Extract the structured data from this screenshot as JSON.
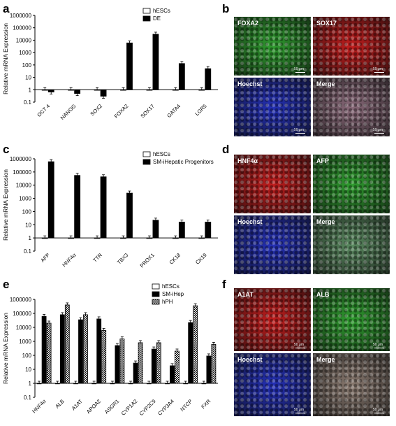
{
  "panels": {
    "a": "a",
    "b": "b",
    "c": "c",
    "d": "d",
    "e": "e",
    "f": "f"
  },
  "chart_data": [
    {
      "type": "bar",
      "panel": "a",
      "ylabel": "Relative mRNA Expression",
      "yscale": "log",
      "ylim": [
        0.1,
        1000000
      ],
      "yticks": [
        "0.1",
        "1",
        "10",
        "100",
        "1000",
        "10000",
        "100000",
        "1000000"
      ],
      "categories": [
        "OCT 4",
        "NANOG",
        "SOX2",
        "FOXA2",
        "SOX17",
        "GATA4",
        "LGR5"
      ],
      "series": [
        {
          "name": "hESCs",
          "fill": "white",
          "values": [
            1,
            1,
            1,
            1,
            1,
            1,
            1
          ]
        },
        {
          "name": "DE",
          "fill": "black",
          "values": [
            0.65,
            0.5,
            0.3,
            6000,
            30000,
            130,
            50
          ]
        }
      ],
      "legend": "top-right"
    },
    {
      "type": "bar",
      "panel": "c",
      "ylabel": "Relative mRNA Expression",
      "yscale": "log",
      "ylim": [
        0.1,
        1000000
      ],
      "yticks": [
        "0.1",
        "1",
        "10",
        "100",
        "1000",
        "10000",
        "100000",
        "1000000"
      ],
      "categories": [
        "AFP",
        "HNF4α",
        "TTR",
        "TBX3",
        "PROX1",
        "CK18",
        "CK19"
      ],
      "series": [
        {
          "name": "hESCs",
          "fill": "white",
          "values": [
            1,
            1,
            1,
            1,
            1,
            1,
            1
          ]
        },
        {
          "name": "SM-iHepatic Progenitors",
          "fill": "black",
          "values": [
            600000,
            55000,
            43000,
            2500,
            22,
            16,
            16
          ]
        }
      ],
      "legend": "top-right"
    },
    {
      "type": "bar",
      "panel": "e",
      "ylabel": "Relative mRNA Expression",
      "yscale": "log",
      "ylim": [
        0.1,
        1000000
      ],
      "yticks": [
        "0.1",
        "1",
        "10",
        "100",
        "1000",
        "10000",
        "100000",
        "1000000"
      ],
      "categories": [
        "HNF4α",
        "ALB",
        "A1AT",
        "APOA2",
        "ASGR1",
        "CYP1A2",
        "CYP2C9",
        "CYP3A4",
        "NTCP",
        "FXR"
      ],
      "series": [
        {
          "name": "hESCs",
          "fill": "white",
          "values": [
            1,
            1,
            1,
            1,
            1,
            1,
            1,
            1,
            1,
            1
          ]
        },
        {
          "name": "SM-iHep",
          "fill": "black",
          "values": [
            60000,
            80000,
            35000,
            40000,
            500,
            28,
            280,
            18,
            22000,
            90
          ]
        },
        {
          "name": "hPH",
          "fill": "checker",
          "values": [
            20000,
            400000,
            80000,
            6000,
            1500,
            800,
            800,
            200,
            350000,
            600
          ]
        }
      ],
      "legend": "top-right"
    }
  ],
  "images": {
    "b": [
      {
        "label": "FOXA2",
        "color": "#2f9d2f",
        "scale": "50 μm"
      },
      {
        "label": "SOX17",
        "color": "#c21d1d",
        "scale": "50 μm"
      },
      {
        "label": "Hoechst",
        "color": "#2430b8",
        "scale": "50 μm"
      },
      {
        "label": "Merge",
        "color": "#8a6a7a",
        "scale": "50 μm"
      }
    ],
    "d": [
      {
        "label": "HNF4α",
        "color": "#c21d1d",
        "scale": ""
      },
      {
        "label": "AFP",
        "color": "#2f9d2f",
        "scale": ""
      },
      {
        "label": "Hoechst",
        "color": "#2430b8",
        "scale": ""
      },
      {
        "label": "Merge",
        "color": "#5a8a60",
        "scale": ""
      }
    ],
    "f": [
      {
        "label": "A1AT",
        "color": "#c21d1d",
        "scale": "50 μm"
      },
      {
        "label": "ALB",
        "color": "#2f9d2f",
        "scale": "50 μm"
      },
      {
        "label": "Hoechst",
        "color": "#2430b8",
        "scale": "50 μm"
      },
      {
        "label": "Merge",
        "color": "#8a7a70",
        "scale": "50 μm"
      }
    ]
  }
}
